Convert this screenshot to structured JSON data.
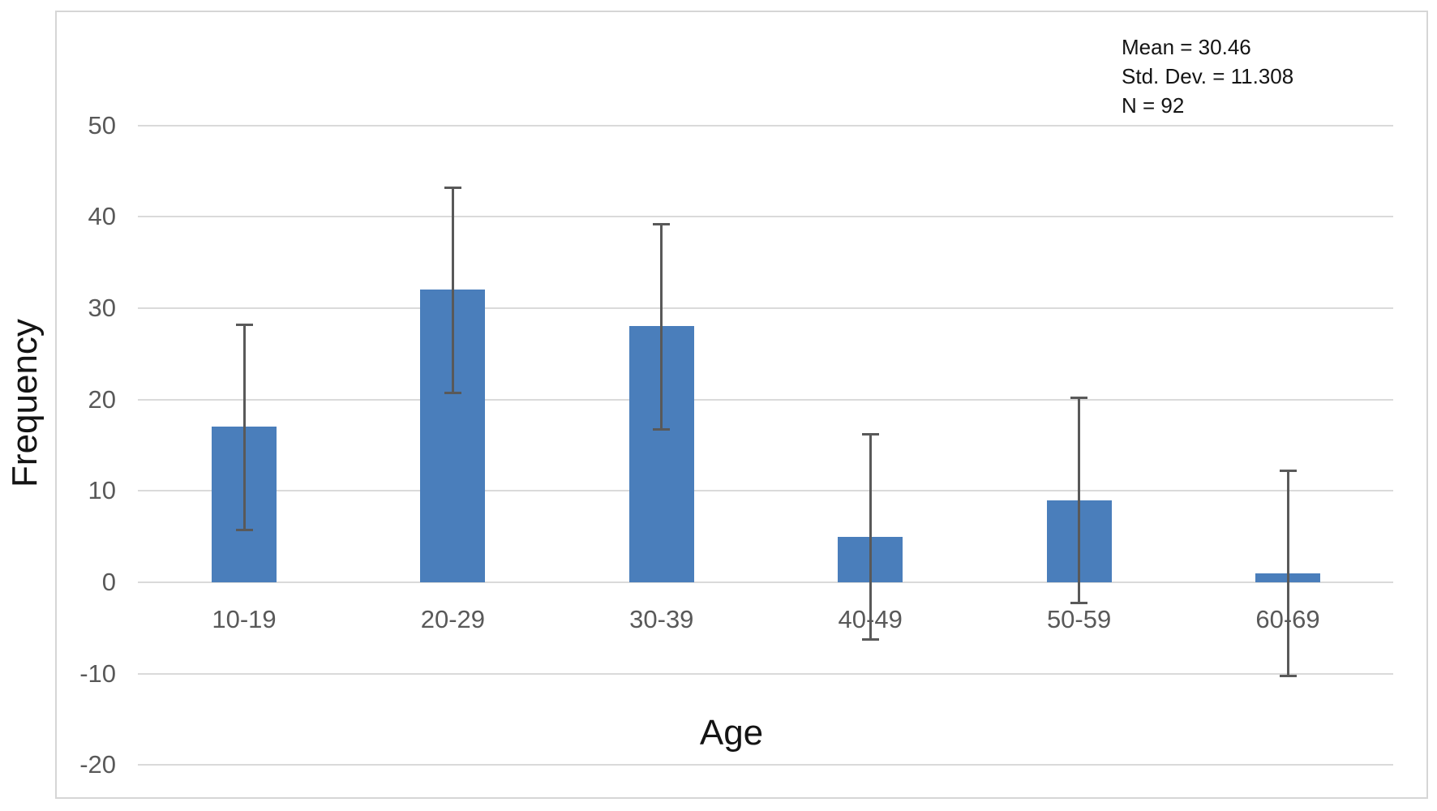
{
  "chart_data": {
    "type": "bar",
    "title": "",
    "xlabel": "Age",
    "ylabel": "Frequency",
    "categories": [
      "10-19",
      "20-29",
      "30-39",
      "40-49",
      "50-59",
      "60-69"
    ],
    "values": [
      17,
      32,
      28,
      5,
      9,
      1
    ],
    "error_bars": {
      "kind": "plus-minus one standard deviation",
      "magnitude": 11.308,
      "upper": [
        28.31,
        43.31,
        39.31,
        16.31,
        20.31,
        12.31
      ],
      "lower": [
        5.69,
        20.69,
        16.69,
        -6.31,
        -2.31,
        -10.31
      ]
    },
    "yticks": [
      50,
      40,
      30,
      20,
      10,
      0,
      -10,
      -20
    ],
    "ylim": [
      -24,
      57
    ],
    "grid": true,
    "legend": "none",
    "colors": {
      "bar": "#4a7ebb",
      "error_bar": "#595959",
      "gridline": "#dadada",
      "tick_label": "#595959",
      "axis_title": "#141414",
      "frame_border": "#d6d6d6",
      "background": "#ffffff"
    }
  },
  "stats_box": {
    "lines": [
      "Mean = 30.46",
      "Std. Dev. = 11.308",
      "N = 92"
    ]
  }
}
